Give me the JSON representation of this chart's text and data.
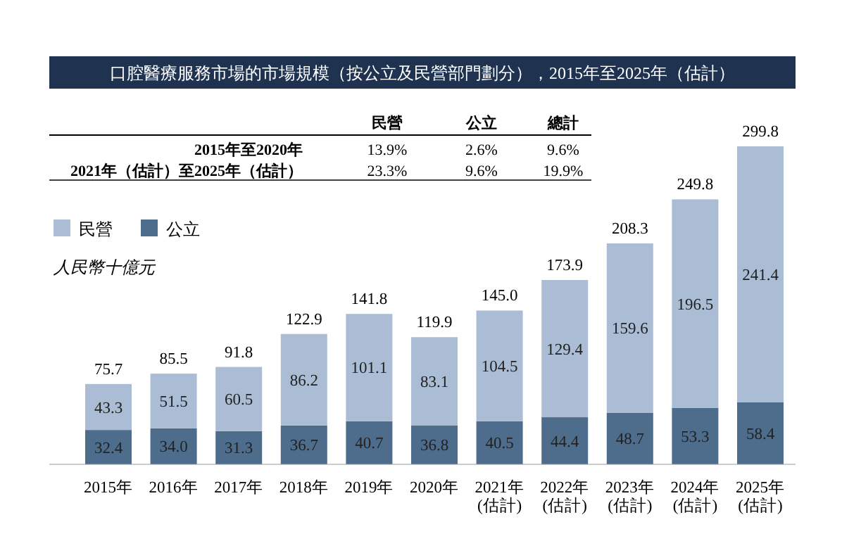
{
  "chart_data": {
    "type": "bar",
    "stacked": true,
    "title": "口腔醫療服務市場的市場規模（按公立及民營部門劃分），2015年至2025年（估計）",
    "ylabel": "人民幣十億元",
    "categories": [
      "2015年",
      "2016年",
      "2017年",
      "2018年",
      "2019年",
      "2020年",
      "2021年 (估計)",
      "2022年 (估計)",
      "2023年 (估計)",
      "2024年 (估計)",
      "2025年 (估計)"
    ],
    "series": [
      {
        "name": "公立",
        "color": "#4e6c8c",
        "values": [
          32.4,
          34.0,
          31.3,
          36.7,
          40.7,
          36.8,
          40.5,
          44.4,
          48.7,
          53.3,
          58.4
        ],
        "value_labels": [
          "32.4",
          "34.0",
          "31.3",
          "36.7",
          "40.7",
          "36.8",
          "40.5",
          "44.4",
          "48.7",
          "53.3",
          "58.4"
        ]
      },
      {
        "name": "民營",
        "color": "#abbdd5",
        "values": [
          43.3,
          51.5,
          60.5,
          86.2,
          101.1,
          83.1,
          104.5,
          129.4,
          159.6,
          196.5,
          241.4
        ],
        "value_labels": [
          "43.3",
          "51.5",
          "60.5",
          "86.2",
          "101.1",
          "83.1",
          "104.5",
          "129.4",
          "159.6",
          "196.5",
          "241.4"
        ]
      }
    ],
    "totals": [
      "75.7",
      "85.5",
      "91.8",
      "122.9",
      "141.8",
      "119.9",
      "145.0",
      "173.9",
      "208.3",
      "249.8",
      "299.8"
    ],
    "legend": "top left",
    "annotations": [
      "民營",
      "公立",
      "總計",
      "2015年至2020年",
      "13.9%",
      "2.6%",
      "9.6%",
      "2021年（估計）至2025年（估計）",
      "23.3%",
      "9.6%",
      "19.9%"
    ]
  }
}
